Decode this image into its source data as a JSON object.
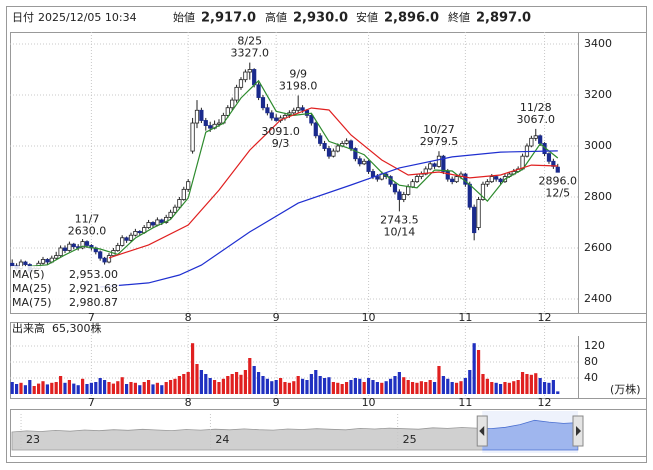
{
  "header": {
    "date_label": "日付",
    "date": "2025/12/05 10:34",
    "items": [
      {
        "label": "始値",
        "value": "2,917.0",
        "color": "#000000"
      },
      {
        "label": "高値",
        "value": "2,930.0",
        "color": "#e00000"
      },
      {
        "label": "安値",
        "value": "2,896.0",
        "color": "#008000"
      },
      {
        "label": "終値",
        "value": "2,897.0",
        "color": "#000000"
      }
    ]
  },
  "chart_data": [
    {
      "type": "candlestick",
      "open": [
        2540,
        2530,
        2520,
        2545,
        2535,
        2510,
        2520,
        2540,
        2555,
        2545,
        2560,
        2570,
        2600,
        2590,
        2615,
        2605,
        2600,
        2625,
        2610,
        2600,
        2585,
        2560,
        2545,
        2570,
        2590,
        2610,
        2640,
        2630,
        2650,
        2665,
        2660,
        2680,
        2700,
        2690,
        2710,
        2700,
        2720,
        2740,
        2760,
        2790,
        2830,
        2980,
        3090,
        3140,
        3100,
        3080,
        3070,
        3085,
        3090,
        3120,
        3150,
        3180,
        3230,
        3260,
        3290,
        3300,
        3240,
        3190,
        3150,
        3130,
        3110,
        3100,
        3110,
        3120,
        3130,
        3140,
        3150,
        3140,
        3120,
        3090,
        3040,
        3010,
        2990,
        2960,
        2980,
        3000,
        3010,
        3020,
        2990,
        2950,
        2930,
        2940,
        2900,
        2880,
        2870,
        2890,
        2880,
        2850,
        2820,
        2790,
        2810,
        2840,
        2860,
        2880,
        2890,
        2910,
        2930,
        2920,
        2960,
        2900,
        2870,
        2860,
        2880,
        2890,
        2850,
        2760,
        2680,
        2790,
        2850,
        2860,
        2880,
        2870,
        2860,
        2880,
        2890,
        2900,
        2910,
        2960,
        3000,
        3030,
        3040,
        3010,
        2970,
        2940,
        2917
      ],
      "high": [
        2555,
        2540,
        2555,
        2550,
        2540,
        2530,
        2550,
        2565,
        2560,
        2570,
        2585,
        2610,
        2610,
        2625,
        2620,
        2615,
        2635,
        2630,
        2615,
        2605,
        2590,
        2565,
        2580,
        2600,
        2620,
        2650,
        2645,
        2660,
        2675,
        2670,
        2690,
        2710,
        2705,
        2720,
        2715,
        2730,
        2750,
        2770,
        2800,
        2840,
        2870,
        3110,
        3180,
        3150,
        3110,
        3095,
        3100,
        3105,
        3130,
        3160,
        3190,
        3240,
        3270,
        3300,
        3327,
        3305,
        3250,
        3200,
        3165,
        3140,
        3125,
        3120,
        3130,
        3140,
        3150,
        3198,
        3160,
        3145,
        3125,
        3095,
        3050,
        3020,
        3000,
        2990,
        3010,
        3020,
        3030,
        3025,
        2995,
        2960,
        2950,
        2945,
        2910,
        2890,
        2900,
        2895,
        2885,
        2860,
        2830,
        2820,
        2850,
        2870,
        2890,
        2900,
        2920,
        2940,
        2935,
        2979.5,
        2965,
        2910,
        2880,
        2890,
        2900,
        2895,
        2860,
        2770,
        2800,
        2860,
        2870,
        2890,
        2885,
        2875,
        2890,
        2900,
        2910,
        2920,
        2970,
        3010,
        3040,
        3067,
        3045,
        3015,
        2975,
        2950,
        2930
      ],
      "low": [
        2520,
        2510,
        2515,
        2525,
        2500,
        2505,
        2515,
        2535,
        2535,
        2540,
        2555,
        2565,
        2580,
        2585,
        2595,
        2590,
        2595,
        2600,
        2590,
        2575,
        2550,
        2535,
        2540,
        2565,
        2585,
        2605,
        2620,
        2625,
        2645,
        2650,
        2655,
        2675,
        2680,
        2685,
        2690,
        2695,
        2715,
        2735,
        2755,
        2785,
        2820,
        2970,
        3070,
        3090,
        3060,
        3055,
        3065,
        3075,
        3085,
        3110,
        3140,
        3170,
        3220,
        3250,
        3260,
        3230,
        3180,
        3140,
        3120,
        3100,
        3095,
        3091,
        3100,
        3110,
        3120,
        3130,
        3130,
        3110,
        3080,
        3030,
        3000,
        2980,
        2950,
        2955,
        2975,
        2995,
        3005,
        2980,
        2940,
        2920,
        2925,
        2890,
        2870,
        2860,
        2865,
        2870,
        2840,
        2810,
        2743.5,
        2780,
        2805,
        2835,
        2855,
        2870,
        2885,
        2905,
        2910,
        2915,
        2890,
        2860,
        2850,
        2855,
        2870,
        2840,
        2750,
        2630,
        2670,
        2785,
        2840,
        2855,
        2860,
        2850,
        2855,
        2875,
        2885,
        2895,
        2905,
        2955,
        2995,
        3020,
        3000,
        2960,
        2930,
        2910,
        2896
      ],
      "close": [
        2530,
        2520,
        2545,
        2535,
        2510,
        2520,
        2540,
        2555,
        2545,
        2560,
        2570,
        2600,
        2590,
        2615,
        2605,
        2600,
        2625,
        2610,
        2600,
        2585,
        2560,
        2545,
        2570,
        2590,
        2610,
        2640,
        2630,
        2650,
        2665,
        2660,
        2680,
        2700,
        2690,
        2710,
        2700,
        2720,
        2740,
        2760,
        2790,
        2830,
        2860,
        3090,
        3140,
        3100,
        3080,
        3070,
        3085,
        3090,
        3120,
        3150,
        3180,
        3230,
        3260,
        3290,
        3300,
        3240,
        3190,
        3150,
        3130,
        3110,
        3100,
        3110,
        3120,
        3130,
        3140,
        3150,
        3140,
        3120,
        3090,
        3040,
        3010,
        2990,
        2960,
        2980,
        3000,
        3010,
        3020,
        2990,
        2950,
        2930,
        2940,
        2900,
        2880,
        2870,
        2890,
        2880,
        2850,
        2820,
        2790,
        2810,
        2840,
        2860,
        2880,
        2890,
        2910,
        2930,
        2920,
        2960,
        2900,
        2870,
        2860,
        2880,
        2890,
        2850,
        2760,
        2660,
        2790,
        2850,
        2860,
        2880,
        2870,
        2860,
        2880,
        2890,
        2900,
        2910,
        2960,
        3000,
        3030,
        3040,
        3010,
        2970,
        2940,
        2920,
        2897
      ],
      "up_color": "#ffffff",
      "down_color": "#1a2a8c",
      "xlim": [
        -0.5,
        128.6
      ],
      "ylim": [
        2345,
        3447
      ],
      "xticks": [
        {
          "value": 18,
          "label": "7"
        },
        {
          "value": 40,
          "label": "8"
        },
        {
          "value": 60,
          "label": "9"
        },
        {
          "value": 81,
          "label": "10"
        },
        {
          "value": 103,
          "label": "11"
        },
        {
          "value": 121,
          "label": "12"
        }
      ],
      "yticks": [
        2400,
        2600,
        2800,
        3000,
        3200,
        3400
      ],
      "grid": true,
      "overlays": [
        {
          "name": "MA(5)",
          "value_label": "2,953.00",
          "color": "#2e8b2e",
          "x": [
            4,
            8,
            12,
            16,
            20,
            24,
            28,
            32,
            36,
            40,
            44,
            48,
            52,
            56,
            60,
            64,
            68,
            72,
            76,
            80,
            84,
            88,
            92,
            96,
            100,
            104,
            108,
            112,
            116,
            120,
            124
          ],
          "values": [
            2528,
            2534,
            2573,
            2607,
            2596,
            2575,
            2639,
            2679,
            2712,
            2796,
            3054,
            3089,
            3188,
            3256,
            3136,
            3120,
            3128,
            3018,
            2994,
            2966,
            2896,
            2846,
            2836,
            2906,
            2902,
            2848,
            2784,
            2870,
            2908,
            3008,
            2953
          ]
        },
        {
          "name": "MA(25)",
          "value_label": "2,921.68",
          "color": "#e02020",
          "x": [
            22,
            31,
            40,
            47,
            54,
            61,
            68,
            72,
            77,
            84,
            90,
            97,
            104,
            111,
            118,
            124
          ],
          "values": [
            2561,
            2612,
            2690,
            2827,
            2984,
            3102,
            3149,
            3141,
            3043,
            2945,
            2886,
            2898,
            2875,
            2886,
            2925,
            2921.68
          ]
        },
        {
          "name": "MA(75)",
          "value_label": "2,980.87",
          "color": "#1f2fd0",
          "x": [
            20,
            31,
            38,
            43,
            54,
            65,
            77,
            88,
            100,
            111,
            124
          ],
          "values": [
            2447,
            2463,
            2494,
            2533,
            2663,
            2776,
            2847,
            2914,
            2957,
            2976,
            2980.87
          ]
        }
      ],
      "annotations": [
        {
          "date": "8/25",
          "value": 3327,
          "label": "3327.0"
        },
        {
          "date": "9/9",
          "value": 3198,
          "label": "3198.0"
        },
        {
          "date": "9/3",
          "value": 3091,
          "label": "3091.0"
        },
        {
          "date": "10/27",
          "value": 2979.5,
          "label": "2979.5"
        },
        {
          "date": "10/14",
          "value": 2743.5,
          "label": "2743.5"
        },
        {
          "date": "11/7",
          "value": 2630,
          "label": "2630.0"
        },
        {
          "date": "11/28",
          "value": 3067,
          "label": "3067.0"
        },
        {
          "date": "12/5",
          "value": 2896,
          "label": "2896.0"
        }
      ]
    },
    {
      "type": "bar",
      "title": "出来高",
      "subtitle": "65,300株",
      "unit_label": "(万株)",
      "values": [
        30,
        25,
        28,
        22,
        35,
        20,
        26,
        32,
        24,
        28,
        30,
        45,
        28,
        35,
        26,
        22,
        38,
        25,
        28,
        30,
        40,
        35,
        30,
        26,
        32,
        42,
        25,
        30,
        28,
        22,
        30,
        35,
        24,
        28,
        22,
        30,
        35,
        38,
        45,
        50,
        55,
        127,
        75,
        60,
        50,
        40,
        35,
        30,
        38,
        45,
        50,
        55,
        48,
        60,
        90,
        70,
        55,
        45,
        38,
        32,
        35,
        40,
        30,
        28,
        32,
        45,
        38,
        35,
        50,
        60,
        45,
        40,
        42,
        30,
        28,
        25,
        30,
        35,
        40,
        38,
        30,
        40,
        35,
        30,
        28,
        32,
        38,
        45,
        55,
        42,
        35,
        30,
        28,
        32,
        30,
        35,
        30,
        70,
        45,
        38,
        30,
        28,
        32,
        40,
        60,
        127,
        110,
        50,
        38,
        30,
        28,
        25,
        30,
        28,
        32,
        35,
        55,
        50,
        48,
        52,
        40,
        30,
        28,
        35,
        6.53
      ],
      "up_color": "#e02020",
      "down_color": "#2030c0",
      "ylim": [
        0,
        145
      ],
      "yticks": [
        40,
        80,
        120
      ]
    },
    {
      "type": "area",
      "values": [
        2350,
        2420,
        2380,
        2450,
        2400,
        2480,
        2430,
        2500,
        2460,
        2520,
        2480,
        2440,
        2510,
        2470,
        2530,
        2490,
        2550,
        2500,
        2470,
        2540,
        2510,
        2560,
        2520,
        2490,
        2580,
        2540,
        2600,
        2560,
        2530,
        2620,
        2580,
        2640,
        2600,
        2570,
        2650,
        2820,
        3100,
        2980,
        2900,
        2950
      ],
      "xlim": [
        0,
        39
      ],
      "ylim": [
        1200,
        3500
      ],
      "xticks": [
        {
          "value": 1.45,
          "label": "23"
        },
        {
          "value": 14.5,
          "label": "24"
        },
        {
          "value": 27.4,
          "label": "25"
        }
      ],
      "selection": [
        32.4,
        39
      ],
      "color": "#d0d0d0",
      "selection_color": "#9fb6ee"
    }
  ]
}
